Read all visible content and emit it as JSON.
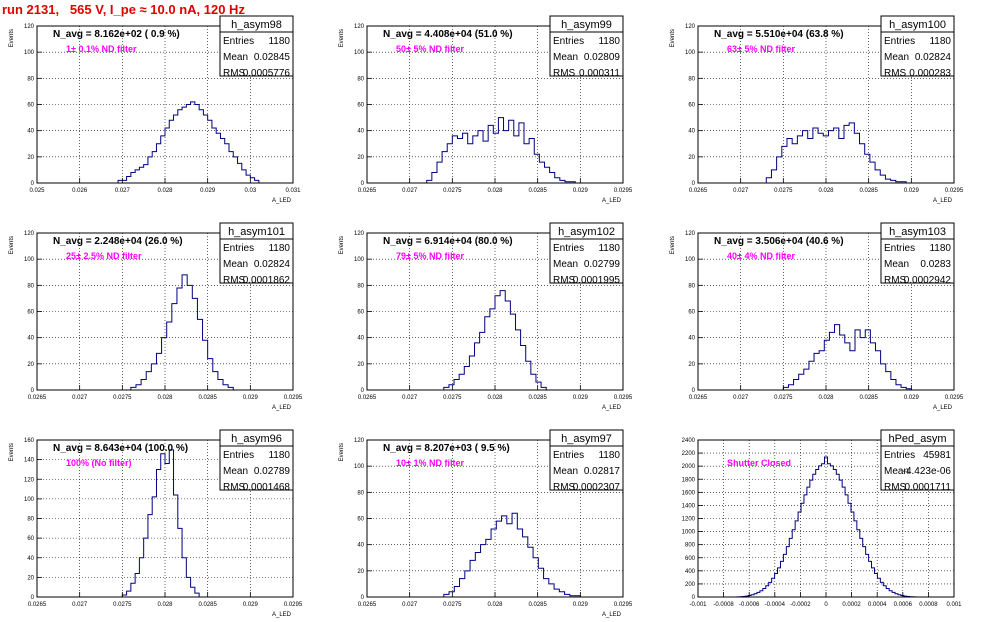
{
  "title": "run 2131,   565 V, I_pe ≈ 10.0 nA, 120 Hz",
  "colors": {
    "title": "#e00000",
    "filter_label": "#ff00ff",
    "hist": "#000080",
    "frame": "#000000",
    "grid": "#000000"
  },
  "chart_data": [
    {
      "type": "histogram",
      "name": "h_asym98",
      "header": "N_avg = 8.162e+02 ( 0.9 %)",
      "filter": "1± 0.1% ND filter",
      "stats": [
        {
          "label": "Entries",
          "value": "1180"
        },
        {
          "label": "Mean",
          "value": "0.02845"
        },
        {
          "label": "RMS",
          "value": "0.0005776"
        }
      ],
      "xlabel": "A_LED",
      "ylabel": "Events",
      "xlim": [
        0.025,
        0.031
      ],
      "ylim": [
        0,
        120
      ],
      "xticks": [
        "0.025",
        "0.026",
        "0.027",
        "0.028",
        "0.029",
        "0.03",
        "0.031"
      ],
      "xtick_vals": [
        0.025,
        0.026,
        0.027,
        0.028,
        0.029,
        0.03,
        0.031
      ],
      "yticks": [
        "0",
        "20",
        "40",
        "60",
        "80",
        "100",
        "120"
      ],
      "yticks_vals": [
        0,
        20,
        40,
        60,
        80,
        100,
        120
      ],
      "bins": {
        "lo": 0.0269,
        "hi": 0.0302,
        "values": [
          2,
          2,
          5,
          8,
          10,
          12,
          14,
          20,
          24,
          30,
          36,
          42,
          48,
          52,
          56,
          58,
          60,
          62,
          60,
          56,
          52,
          48,
          42,
          38,
          34,
          30,
          24,
          20,
          15,
          10,
          6,
          4,
          2
        ]
      }
    },
    {
      "type": "histogram",
      "name": "h_asym99",
      "header": "N_avg = 4.408e+04 (51.0 %)",
      "filter": "50± 5% ND filter",
      "stats": [
        {
          "label": "Entries",
          "value": "1180"
        },
        {
          "label": "Mean",
          "value": "0.02809"
        },
        {
          "label": "RMS",
          "value": "0.000311"
        }
      ],
      "xlabel": "A_LED",
      "ylabel": "Events",
      "xlim": [
        0.0265,
        0.0295
      ],
      "ylim": [
        0,
        120
      ],
      "xticks": [
        "0.0265",
        "0.027",
        "0.0275",
        "0.028",
        "0.0285",
        "0.029",
        "0.0295"
      ],
      "xtick_vals": [
        0.0265,
        0.027,
        0.0275,
        0.028,
        0.0285,
        0.029,
        0.0295
      ],
      "yticks": [
        "0",
        "20",
        "40",
        "60",
        "80",
        "100",
        "120"
      ],
      "yticks_vals": [
        0,
        20,
        40,
        60,
        80,
        100,
        120
      ],
      "bins": {
        "lo": 0.0272,
        "hi": 0.029,
        "values": [
          2,
          8,
          16,
          24,
          30,
          36,
          34,
          38,
          30,
          36,
          40,
          32,
          44,
          38,
          50,
          40,
          48,
          36,
          46,
          30,
          34,
          22,
          16,
          12,
          8,
          4,
          2,
          1,
          1,
          0
        ]
      }
    },
    {
      "type": "histogram",
      "name": "h_asym100",
      "header": "N_avg = 5.510e+04 (63.8 %)",
      "filter": "63± 5% ND filter",
      "stats": [
        {
          "label": "Entries",
          "value": "1180"
        },
        {
          "label": "Mean",
          "value": "0.02824"
        },
        {
          "label": "RMS",
          "value": "0.000283"
        }
      ],
      "xlabel": "A_LED",
      "ylabel": "Events",
      "xlim": [
        0.0265,
        0.0295
      ],
      "ylim": [
        0,
        120
      ],
      "xticks": [
        "0.0265",
        "0.027",
        "0.0275",
        "0.028",
        "0.0285",
        "0.029",
        "0.0295"
      ],
      "xtick_vals": [
        0.0265,
        0.027,
        0.0275,
        0.028,
        0.0285,
        0.029,
        0.0295
      ],
      "yticks": [
        "0",
        "20",
        "40",
        "60",
        "80",
        "100",
        "120"
      ],
      "yticks_vals": [
        0,
        20,
        40,
        60,
        80,
        100,
        120
      ],
      "bins": {
        "lo": 0.0273,
        "hi": 0.029,
        "values": [
          4,
          10,
          20,
          28,
          34,
          30,
          36,
          40,
          34,
          42,
          38,
          36,
          40,
          42,
          34,
          44,
          46,
          38,
          30,
          22,
          16,
          10,
          6,
          3,
          2,
          1,
          1,
          0
        ]
      }
    },
    {
      "type": "histogram",
      "name": "h_asym101",
      "header": "N_avg = 2.248e+04 (26.0 %)",
      "filter": "25± 2.5% ND filter",
      "stats": [
        {
          "label": "Entries",
          "value": "1180"
        },
        {
          "label": "Mean",
          "value": "0.02824"
        },
        {
          "label": "RMS",
          "value": "0.0001862"
        }
      ],
      "xlabel": "A_LED",
      "ylabel": "Events",
      "xlim": [
        0.0265,
        0.0295
      ],
      "ylim": [
        0,
        120
      ],
      "xticks": [
        "0.0265",
        "0.027",
        "0.0275",
        "0.028",
        "0.0285",
        "0.029",
        "0.0295"
      ],
      "xtick_vals": [
        0.0265,
        0.027,
        0.0275,
        0.028,
        0.0285,
        0.029,
        0.0295
      ],
      "yticks": [
        "0",
        "20",
        "40",
        "60",
        "80",
        "100",
        "120"
      ],
      "yticks_vals": [
        0,
        20,
        40,
        60,
        80,
        100,
        120
      ],
      "bins": {
        "lo": 0.0276,
        "hi": 0.0288,
        "values": [
          2,
          4,
          8,
          14,
          20,
          28,
          40,
          52,
          66,
          78,
          88,
          80,
          70,
          54,
          38,
          24,
          14,
          8,
          4,
          2
        ]
      }
    },
    {
      "type": "histogram",
      "name": "h_asym102",
      "header": "N_avg = 6.914e+04 (80.0 %)",
      "filter": "79± 5% ND filter",
      "stats": [
        {
          "label": "Entries",
          "value": "1180"
        },
        {
          "label": "Mean",
          "value": "0.02799"
        },
        {
          "label": "RMS",
          "value": "0.0001995"
        }
      ],
      "xlabel": "A_LED",
      "ylabel": "Events",
      "xlim": [
        0.0265,
        0.0295
      ],
      "ylim": [
        0,
        120
      ],
      "xticks": [
        "0.0265",
        "0.027",
        "0.0275",
        "0.028",
        "0.0285",
        "0.029",
        "0.0295"
      ],
      "xtick_vals": [
        0.0265,
        0.027,
        0.0275,
        0.028,
        0.0285,
        0.029,
        0.0295
      ],
      "yticks": [
        "0",
        "20",
        "40",
        "60",
        "80",
        "100",
        "120"
      ],
      "yticks_vals": [
        0,
        20,
        40,
        60,
        80,
        100,
        120
      ],
      "bins": {
        "lo": 0.0274,
        "hi": 0.0286,
        "values": [
          2,
          4,
          8,
          12,
          18,
          26,
          36,
          44,
          56,
          62,
          72,
          76,
          68,
          58,
          46,
          34,
          22,
          12,
          6,
          2
        ]
      }
    },
    {
      "type": "histogram",
      "name": "h_asym103",
      "header": "N_avg = 3.506e+04 (40.6 %)",
      "filter": "40± 4% ND filter",
      "stats": [
        {
          "label": "Entries",
          "value": "1180"
        },
        {
          "label": "Mean",
          "value": "0.0283"
        },
        {
          "label": "RMS",
          "value": "0.0002942"
        }
      ],
      "xlabel": "A_LED",
      "ylabel": "Events",
      "xlim": [
        0.0265,
        0.0295
      ],
      "ylim": [
        0,
        120
      ],
      "xticks": [
        "0.0265",
        "0.027",
        "0.0275",
        "0.028",
        "0.0285",
        "0.029",
        "0.0295"
      ],
      "xtick_vals": [
        0.0265,
        0.027,
        0.0275,
        0.028,
        0.0285,
        0.029,
        0.0295
      ],
      "yticks": [
        "0",
        "20",
        "40",
        "60",
        "80",
        "100",
        "120"
      ],
      "yticks_vals": [
        0,
        20,
        40,
        60,
        80,
        100,
        120
      ],
      "bins": {
        "lo": 0.0275,
        "hi": 0.029,
        "values": [
          2,
          4,
          8,
          12,
          16,
          22,
          28,
          30,
          38,
          44,
          50,
          42,
          36,
          30,
          46,
          40,
          46,
          36,
          30,
          20,
          14,
          8,
          4,
          2,
          1
        ]
      }
    },
    {
      "type": "histogram",
      "name": "h_asym96",
      "header": "N_avg = 8.643e+04 (100.0 %)",
      "filter": "100% (No filter)",
      "stats": [
        {
          "label": "Entries",
          "value": "1180"
        },
        {
          "label": "Mean",
          "value": "0.02789"
        },
        {
          "label": "RMS",
          "value": "0.0001468"
        }
      ],
      "xlabel": "A_LED",
      "ylabel": "Events",
      "xlim": [
        0.0265,
        0.0295
      ],
      "ylim": [
        0,
        160
      ],
      "xticks": [
        "0.0265",
        "0.027",
        "0.0275",
        "0.028",
        "0.0285",
        "0.029",
        "0.0295"
      ],
      "xtick_vals": [
        0.0265,
        0.027,
        0.0275,
        0.028,
        0.0285,
        0.029,
        0.0295
      ],
      "yticks": [
        "0",
        "20",
        "40",
        "60",
        "80",
        "100",
        "120",
        "140",
        "160"
      ],
      "yticks_vals": [
        0,
        20,
        40,
        60,
        80,
        100,
        120,
        140,
        160
      ],
      "bins": {
        "lo": 0.0275,
        "hi": 0.0284,
        "values": [
          2,
          6,
          14,
          24,
          40,
          60,
          84,
          102,
          130,
          146,
          136,
          150,
          104,
          70,
          40,
          20,
          10,
          4
        ]
      }
    },
    {
      "type": "histogram",
      "name": "h_asym97",
      "header": "N_avg = 8.207e+03 ( 9.5 %)",
      "filter": "10± 1% ND filter",
      "stats": [
        {
          "label": "Entries",
          "value": "1180"
        },
        {
          "label": "Mean",
          "value": "0.02817"
        },
        {
          "label": "RMS",
          "value": "0.0002307"
        }
      ],
      "xlabel": "A_LED",
      "ylabel": "Events",
      "xlim": [
        0.0265,
        0.0295
      ],
      "ylim": [
        0,
        120
      ],
      "xticks": [
        "0.0265",
        "0.027",
        "0.0275",
        "0.028",
        "0.0285",
        "0.029",
        "0.0295"
      ],
      "xtick_vals": [
        0.0265,
        0.027,
        0.0275,
        0.028,
        0.0285,
        0.029,
        0.0295
      ],
      "yticks": [
        "0",
        "20",
        "40",
        "60",
        "80",
        "100",
        "120"
      ],
      "yticks_vals": [
        0,
        20,
        40,
        60,
        80,
        100,
        120
      ],
      "bins": {
        "lo": 0.0274,
        "hi": 0.029,
        "values": [
          2,
          4,
          8,
          14,
          20,
          28,
          34,
          40,
          44,
          52,
          58,
          62,
          56,
          64,
          52,
          46,
          38,
          30,
          22,
          14,
          10,
          6,
          4,
          2,
          1,
          1
        ]
      }
    },
    {
      "type": "histogram",
      "name": "hPed_asym",
      "header": "",
      "filter": "Shutter Closed",
      "stats": [
        {
          "label": "Entries",
          "value": "45981"
        },
        {
          "label": "Mean",
          "value": "-4.423e-06"
        },
        {
          "label": "RMS",
          "value": "0.0001711"
        }
      ],
      "xlabel": "",
      "ylabel": "",
      "xlim": [
        -0.001,
        0.001
      ],
      "ylim": [
        0,
        2400
      ],
      "xticks": [
        "-0.001",
        "-0.0008",
        "-0.0006",
        "-0.0004",
        "-0.0002",
        "0",
        "0.0002",
        "0.0004",
        "0.0006",
        "0.0008",
        "0.001"
      ],
      "xtick_vals": [
        -0.001,
        -0.0008,
        -0.0006,
        -0.0004,
        -0.0002,
        0,
        0.0002,
        0.0004,
        0.0006,
        0.0008,
        0.001
      ],
      "yticks": [
        "0",
        "200",
        "400",
        "600",
        "800",
        "1000",
        "1200",
        "1400",
        "1600",
        "1800",
        "2000",
        "2200",
        "2400"
      ],
      "yticks_vals": [
        0,
        200,
        400,
        600,
        800,
        1000,
        1200,
        1400,
        1600,
        1800,
        2000,
        2200,
        2400
      ],
      "bins": {
        "lo": -0.0007,
        "hi": 0.0007,
        "values": [
          2,
          4,
          8,
          14,
          22,
          34,
          50,
          70,
          96,
          130,
          172,
          224,
          286,
          360,
          446,
          544,
          652,
          770,
          896,
          1028,
          1164,
          1300,
          1434,
          1562,
          1680,
          1786,
          1876,
          1950,
          2004,
          2036,
          2140,
          2036,
          2004,
          1950,
          1876,
          1786,
          1680,
          1562,
          1434,
          1300,
          1164,
          1028,
          896,
          770,
          652,
          544,
          446,
          360,
          286,
          224,
          172,
          130,
          96,
          70,
          50,
          34,
          22,
          14,
          8,
          4,
          2
        ]
      }
    }
  ]
}
